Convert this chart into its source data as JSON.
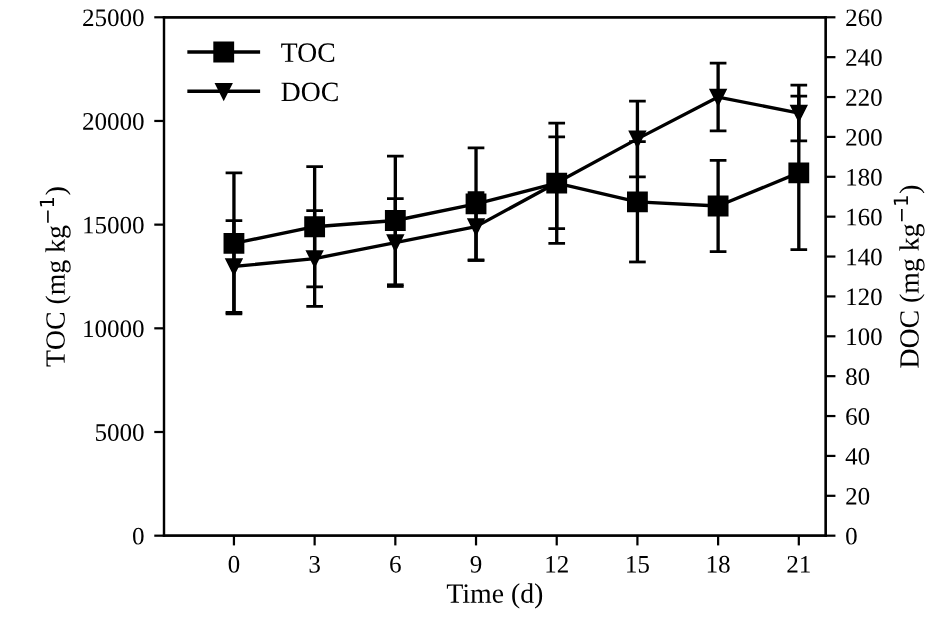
{
  "chart_data": {
    "type": "line",
    "xlabel": "Time (d)",
    "ylabel": "TOC (mg kg$^{−1}$)",
    "y2label": "DOC (mg kg$^{−1}$)",
    "x": [
      0,
      3,
      6,
      9,
      12,
      15,
      18,
      21
    ],
    "series": [
      {
        "name": "TOC",
        "color": "#000000",
        "marker": "square",
        "values": [
          14100,
          14900,
          15200,
          16000,
          17000,
          16100,
          15900,
          17500
        ],
        "errors": [
          3400,
          2900,
          3100,
          2700,
          2900,
          2900,
          2200,
          3700
        ]
      },
      {
        "name": "DOC",
        "color": "#000000",
        "marker": "triangle",
        "axis": "y2",
        "values": [
          135,
          139,
          147,
          155,
          177,
          199,
          220,
          212
        ],
        "errors": [
          23,
          24,
          22,
          17,
          23,
          19,
          17,
          14
        ]
      }
    ],
    "xlim": [
      -2.6,
      22
    ],
    "xticks": [
      0,
      3,
      6,
      9,
      12,
      15,
      18,
      21
    ],
    "ylim": [
      0,
      25000
    ],
    "yticks": [
      0,
      5000,
      10000,
      15000,
      20000,
      25000
    ],
    "y2lim": [
      0,
      260
    ],
    "y2ticks": [
      0,
      20,
      40,
      60,
      80,
      100,
      120,
      140,
      160,
      180,
      200,
      220,
      240,
      260
    ],
    "line_style": "solid",
    "grid": false,
    "legend": "top left"
  }
}
